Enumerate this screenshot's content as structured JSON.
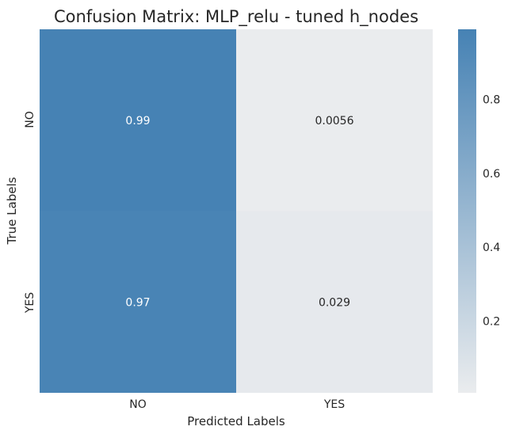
{
  "chart_data": {
    "type": "heatmap",
    "title": "Confusion Matrix: MLP_relu - tuned h_nodes",
    "xlabel": "Predicted Labels",
    "ylabel": "True Labels",
    "x_categories": [
      "NO",
      "YES"
    ],
    "y_categories": [
      "NO",
      "YES"
    ],
    "values": [
      [
        0.99,
        0.0056
      ],
      [
        0.97,
        0.029
      ]
    ],
    "annotations": [
      [
        "0.99",
        "0.0056"
      ],
      [
        "0.97",
        "0.029"
      ]
    ],
    "colorbar": {
      "ticks": [
        0.2,
        0.4,
        0.6,
        0.8
      ],
      "tick_labels": [
        "0.2",
        "0.4",
        "0.6",
        "0.8"
      ],
      "range": [
        0.0056,
        0.99
      ]
    },
    "colors": {
      "low": "#eaecee",
      "high": "#4682b4",
      "text_dark": "#262626",
      "text_light": "#ffffff"
    }
  }
}
